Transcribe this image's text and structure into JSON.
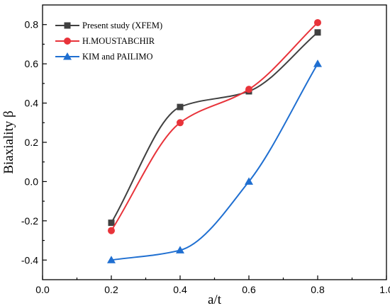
{
  "chart_data": {
    "type": "line",
    "title": "",
    "xlabel": "a/t",
    "ylabel": "Biaxiality β",
    "xlim": [
      0.0,
      1.0
    ],
    "ylim": [
      -0.5,
      0.9
    ],
    "xticks": [
      0.0,
      0.2,
      0.4,
      0.6,
      0.8,
      1.0
    ],
    "xtick_labels": [
      "0.0",
      "0.2",
      "0.4",
      "0.6",
      "0.8",
      "1.0"
    ],
    "yticks": [
      -0.4,
      -0.2,
      0.0,
      0.2,
      0.4,
      0.6,
      0.8
    ],
    "ytick_labels": [
      "-0.4",
      "-0.2",
      "0.0",
      "0.2",
      "0.4",
      "0.6",
      "0.8"
    ],
    "grid": false,
    "legend_position": "top-left",
    "x": [
      0.2,
      0.4,
      0.6,
      0.8
    ],
    "series": [
      {
        "name": "Present study (XFEM)",
        "values": [
          -0.21,
          0.38,
          0.46,
          0.76
        ],
        "color": "#404040",
        "marker": "square"
      },
      {
        "name": "H.MOUSTABCHIR",
        "values": [
          -0.25,
          0.3,
          0.47,
          0.81
        ],
        "color": "#e8333a",
        "marker": "circle"
      },
      {
        "name": "KIM and PAILIMO",
        "values": [
          -0.4,
          -0.35,
          0.0,
          0.6
        ],
        "color": "#1f6fd1",
        "marker": "triangle"
      }
    ]
  }
}
